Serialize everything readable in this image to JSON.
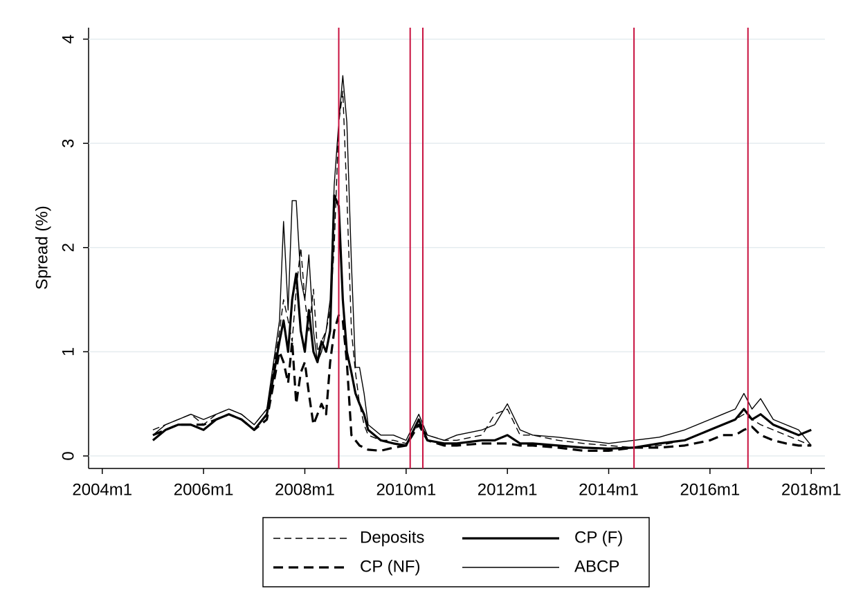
{
  "chart_data": {
    "type": "line",
    "y_label": "Spread (%)",
    "xlim": [
      2003.73,
      2018.27
    ],
    "ylim": [
      -0.12,
      4.11
    ],
    "xticks": [
      {
        "value": 2004,
        "label": "2004m1"
      },
      {
        "value": 2006,
        "label": "2006m1"
      },
      {
        "value": 2008,
        "label": "2008m1"
      },
      {
        "value": 2010,
        "label": "2010m1"
      },
      {
        "value": 2012,
        "label": "2012m1"
      },
      {
        "value": 2014,
        "label": "2014m1"
      },
      {
        "value": 2016,
        "label": "2016m1"
      },
      {
        "value": 2018,
        "label": "2018m1"
      }
    ],
    "yticks": [
      0,
      1,
      2,
      3,
      4
    ],
    "grid": true,
    "vlines": [
      2008.67,
      2010.08,
      2010.33,
      2014.5,
      2016.75
    ],
    "vline_color": "#c8103e",
    "legend": "bottom",
    "x": [
      2005,
      2005.25,
      2005.5,
      2005.75,
      2006,
      2006.25,
      2006.5,
      2006.75,
      2007,
      2007.25,
      2007.5,
      2007.58,
      2007.67,
      2007.75,
      2007.83,
      2007.92,
      2008,
      2008.08,
      2008.17,
      2008.25,
      2008.33,
      2008.42,
      2008.5,
      2008.58,
      2008.67,
      2008.75,
      2008.83,
      2008.92,
      2009,
      2009.08,
      2009.17,
      2009.25,
      2009.5,
      2009.75,
      2010,
      2010.25,
      2010.42,
      2010.75,
      2011,
      2011.5,
      2011.75,
      2012,
      2012.25,
      2012.5,
      2013,
      2013.5,
      2014,
      2014.5,
      2015,
      2015.5,
      2016,
      2016.25,
      2016.5,
      2016.67,
      2016.83,
      2017,
      2017.25,
      2017.5,
      2017.75,
      2018
    ],
    "series": [
      {
        "name": "Deposits",
        "color": "#000000",
        "dashed": true,
        "weight": "thin",
        "values": [
          0.25,
          0.3,
          0.35,
          0.4,
          0.3,
          0.4,
          0.45,
          0.4,
          0.3,
          0.45,
          1.2,
          1.5,
          1.3,
          1.1,
          1.6,
          2.0,
          1.5,
          1.2,
          1.6,
          1.0,
          1.1,
          1.2,
          1.4,
          2.0,
          3.2,
          3.5,
          2.5,
          1.2,
          0.8,
          0.5,
          0.3,
          0.2,
          0.15,
          0.15,
          0.12,
          0.3,
          0.2,
          0.15,
          0.15,
          0.2,
          0.4,
          0.45,
          0.2,
          0.2,
          0.15,
          0.12,
          0.1,
          0.08,
          0.1,
          0.15,
          0.25,
          0.3,
          0.35,
          0.4,
          0.35,
          0.3,
          0.25,
          0.2,
          0.15,
          0.1
        ]
      },
      {
        "name": "CP (F)",
        "color": "#000000",
        "dashed": false,
        "weight": "thick",
        "values": [
          0.15,
          0.25,
          0.3,
          0.3,
          0.25,
          0.35,
          0.4,
          0.35,
          0.25,
          0.4,
          1.1,
          1.3,
          1.0,
          1.5,
          1.75,
          1.2,
          1.0,
          1.4,
          1.0,
          0.9,
          1.1,
          1.0,
          1.2,
          2.5,
          2.4,
          1.5,
          1.0,
          0.8,
          0.6,
          0.5,
          0.4,
          0.25,
          0.15,
          0.12,
          0.1,
          0.35,
          0.15,
          0.12,
          0.12,
          0.15,
          0.15,
          0.2,
          0.12,
          0.12,
          0.1,
          0.08,
          0.07,
          0.08,
          0.12,
          0.15,
          0.25,
          0.3,
          0.35,
          0.45,
          0.35,
          0.4,
          0.3,
          0.25,
          0.2,
          0.25
        ]
      },
      {
        "name": "CP (NF)",
        "color": "#000000",
        "dashed": true,
        "weight": "thick",
        "values": [
          0.2,
          0.25,
          0.3,
          0.3,
          0.3,
          0.35,
          0.4,
          0.35,
          0.25,
          0.35,
          1.0,
          0.9,
          0.7,
          1.1,
          0.5,
          0.8,
          0.9,
          0.6,
          0.3,
          0.4,
          0.5,
          0.4,
          0.9,
          1.2,
          1.35,
          1.3,
          0.9,
          0.2,
          0.15,
          0.1,
          0.08,
          0.06,
          0.05,
          0.08,
          0.1,
          0.3,
          0.15,
          0.1,
          0.1,
          0.12,
          0.12,
          0.12,
          0.1,
          0.1,
          0.08,
          0.05,
          0.05,
          0.08,
          0.08,
          0.1,
          0.15,
          0.2,
          0.2,
          0.25,
          0.28,
          0.2,
          0.15,
          0.12,
          0.1,
          0.1
        ]
      },
      {
        "name": "ABCP",
        "color": "#000000",
        "dashed": false,
        "weight": "thin",
        "values": [
          0.2,
          0.3,
          0.35,
          0.4,
          0.35,
          0.4,
          0.45,
          0.4,
          0.3,
          0.45,
          1.3,
          2.25,
          1.4,
          2.45,
          2.45,
          1.7,
          1.5,
          1.93,
          1.2,
          0.9,
          1.0,
          1.2,
          1.5,
          2.6,
          3.2,
          3.65,
          3.2,
          1.85,
          0.85,
          0.85,
          0.6,
          0.3,
          0.2,
          0.2,
          0.15,
          0.4,
          0.2,
          0.15,
          0.2,
          0.25,
          0.3,
          0.5,
          0.25,
          0.2,
          0.18,
          0.15,
          0.12,
          0.15,
          0.18,
          0.25,
          0.35,
          0.4,
          0.45,
          0.6,
          0.45,
          0.55,
          0.35,
          0.3,
          0.25,
          0.1
        ]
      }
    ]
  }
}
